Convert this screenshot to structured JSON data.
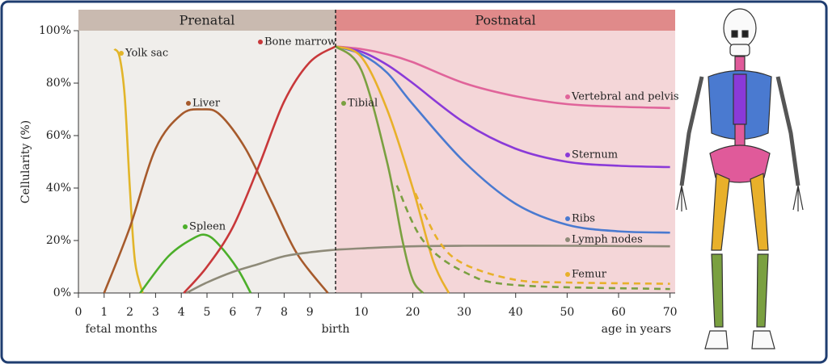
{
  "chart_data": [
    {
      "type": "line",
      "title": "Prenatal",
      "ylabel": "Cellularity (%)",
      "xlabel": "fetal months",
      "boundary_label": "birth",
      "xlim": [
        0,
        10
      ],
      "xticks": [
        0,
        1,
        2,
        3,
        4,
        5,
        6,
        7,
        8,
        9
      ],
      "ylim": [
        0,
        100
      ],
      "yticks": [
        {
          "value": 0,
          "label": "0%"
        },
        {
          "value": 20,
          "label": "20%"
        },
        {
          "value": 40,
          "label": "40%"
        },
        {
          "value": 60,
          "label": "60%"
        },
        {
          "value": 80,
          "label": "80%"
        },
        {
          "value": 100,
          "label": "100%"
        }
      ],
      "background": "#f0eeeb",
      "header_color": "#c9bab0",
      "series": [
        {
          "name": "Yolk sac",
          "color": "#e2b52a",
          "x": [
            1.4,
            1.6,
            1.8,
            2.0,
            2.2,
            2.5
          ],
          "values": [
            93,
            90,
            75,
            40,
            12,
            0
          ]
        },
        {
          "name": "Liver",
          "color": "#a65a2c",
          "x": [
            1,
            2,
            3,
            4,
            4.8,
            5.5,
            6.5,
            7.5,
            8.5,
            9.7
          ],
          "values": [
            0,
            25,
            55,
            68,
            70,
            68,
            55,
            35,
            15,
            0
          ]
        },
        {
          "name": "Spleen",
          "color": "#4caf2a",
          "x": [
            2.4,
            3.5,
            4.5,
            5,
            5.5,
            6.2,
            6.7
          ],
          "values": [
            0,
            14,
            21,
            22,
            18,
            9,
            0
          ]
        },
        {
          "name": "Bone marrow",
          "color": "#c8383a",
          "x": [
            4.1,
            5,
            6,
            7,
            8,
            9,
            10
          ],
          "values": [
            0,
            10,
            25,
            48,
            73,
            88,
            94
          ]
        },
        {
          "color": "#8e8a78",
          "x": [
            4.2,
            5,
            6,
            7,
            8,
            9,
            10
          ],
          "values": [
            0,
            4,
            8,
            11,
            14,
            15.5,
            16.5
          ]
        }
      ]
    },
    {
      "type": "line",
      "title": "Postnatal",
      "xlabel": "age in years",
      "xlim": [
        5,
        71
      ],
      "xticks": [
        10,
        20,
        30,
        40,
        50,
        60,
        70
      ],
      "ylim": [
        0,
        100
      ],
      "background": "#f4d6d8",
      "header_color": "#e08a8a",
      "series": [
        {
          "name": "Vertebral and pelvis",
          "color": "#e0649a",
          "x": [
            5,
            10,
            15,
            20,
            30,
            40,
            50,
            60,
            70
          ],
          "values": [
            94,
            93,
            91,
            88,
            80,
            75,
            72,
            71,
            70.5
          ]
        },
        {
          "name": "Sternum",
          "color": "#8a3ad8",
          "x": [
            5,
            10,
            15,
            20,
            30,
            40,
            50,
            60,
            70
          ],
          "values": [
            94,
            92,
            87,
            80,
            65,
            55,
            50,
            48.5,
            48
          ]
        },
        {
          "name": "Ribs",
          "color": "#4a7ad0",
          "x": [
            5,
            10,
            15,
            20,
            30,
            40,
            50,
            60,
            70
          ],
          "values": [
            94,
            91,
            84,
            72,
            50,
            34,
            26,
            23.5,
            23
          ]
        },
        {
          "name": "Lymph nodes",
          "color": "#8e8a78",
          "x": [
            5,
            10,
            20,
            30,
            50,
            70
          ],
          "values": [
            16.5,
            17,
            17.8,
            18,
            18,
            17.8
          ]
        },
        {
          "name": "Femur",
          "color": "#e8b02a",
          "x": [
            5,
            10,
            15,
            20,
            24,
            27
          ],
          "values": [
            94,
            90,
            70,
            40,
            12,
            0
          ],
          "alt_x": [
            20.5,
            25,
            30,
            40,
            50,
            70
          ],
          "alt_values": [
            38,
            20,
            11,
            5,
            4,
            3.5
          ]
        },
        {
          "name": "Tibial",
          "color": "#7aa040",
          "x": [
            5,
            10,
            15,
            18,
            20,
            22
          ],
          "values": [
            94,
            85,
            50,
            20,
            5,
            0
          ],
          "alt_x": [
            16.9,
            22,
            30,
            40,
            70
          ],
          "alt_values": [
            41,
            20,
            8,
            3,
            1.5
          ]
        }
      ]
    }
  ]
}
